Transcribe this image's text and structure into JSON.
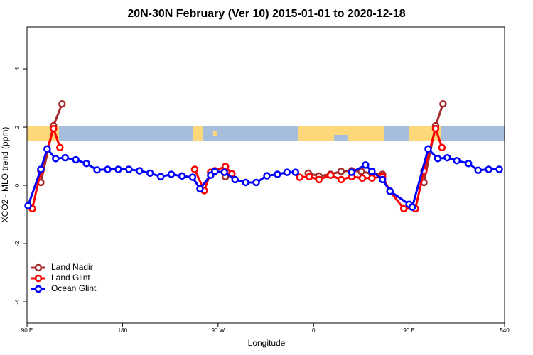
{
  "chart_data": {
    "type": "line",
    "title": "20N-30N February (Ver 10)   2015-01-01 to 2020-12-18",
    "x_label": "Longitude",
    "y_label": "XCO2 - MLO trend (ppm)",
    "xlim": [
      90,
      540
    ],
    "xticks": [
      {
        "value": 90,
        "label": "90 E"
      },
      180,
      {
        "value": 270,
        "label": "90 W"
      },
      {
        "value": 360,
        "label": "0"
      },
      {
        "value": 450,
        "label": "90 E"
      },
      540
    ],
    "ylim": [
      -4.73,
      5.44
    ],
    "yticks": [
      -4,
      -2,
      0,
      2,
      4
    ],
    "legend": "bottom-left",
    "series": [
      {
        "name": "Land Nadir",
        "color": "#a52a2a",
        "x": [
          103,
          115,
          123,
          200,
          277,
          283,
          320,
          355,
          365,
          376,
          386,
          396,
          405,
          415,
          425,
          440,
          464,
          475,
          482
        ],
        "values": [
          0.1,
          2.05,
          2.8,
          null,
          0.3,
          0.4,
          null,
          0.42,
          0.32,
          0.38,
          0.48,
          0.5,
          0.48,
          0.4,
          0.38,
          null,
          0.1,
          2.05,
          2.8
        ]
      },
      {
        "name": "Land Glint",
        "color": "#ff0000",
        "x": [
          95,
          103,
          115,
          121,
          200,
          248,
          257,
          263,
          267,
          277,
          283,
          320,
          347,
          356,
          365,
          376,
          386,
          396,
          406,
          415,
          425,
          432,
          445,
          456,
          464,
          475,
          481
        ],
        "values": [
          -0.8,
          0.5,
          1.95,
          1.3,
          null,
          0.55,
          -0.18,
          0.45,
          0.5,
          0.65,
          0.4,
          null,
          0.28,
          0.3,
          0.2,
          0.35,
          0.2,
          0.3,
          0.25,
          0.25,
          0.3,
          -0.2,
          -0.8,
          -0.8,
          0.5,
          1.95,
          1.3
        ]
      },
      {
        "name": "Ocean Glint",
        "color": "#0000ff",
        "x": [
          91,
          103,
          109,
          117,
          126,
          136,
          146,
          156,
          166,
          176,
          186,
          196,
          206,
          216,
          226,
          236,
          246,
          253,
          263,
          267,
          276,
          286,
          296,
          306,
          316,
          326,
          335,
          343,
          370,
          396,
          409,
          415,
          425,
          432,
          450,
          453,
          468,
          477,
          486,
          495,
          506,
          515,
          525,
          535
        ],
        "values": [
          -0.7,
          0.55,
          1.25,
          0.92,
          0.95,
          0.88,
          0.75,
          0.53,
          0.55,
          0.55,
          0.55,
          0.5,
          0.42,
          0.3,
          0.38,
          0.32,
          0.28,
          -0.12,
          0.35,
          0.48,
          0.45,
          0.2,
          0.1,
          0.1,
          0.33,
          0.38,
          0.45,
          0.45,
          null,
          0.45,
          0.7,
          0.48,
          0.2,
          -0.2,
          -0.65,
          -0.75,
          1.25,
          0.92,
          0.95,
          0.85,
          0.75,
          0.52,
          0.55,
          0.55
        ]
      }
    ]
  }
}
